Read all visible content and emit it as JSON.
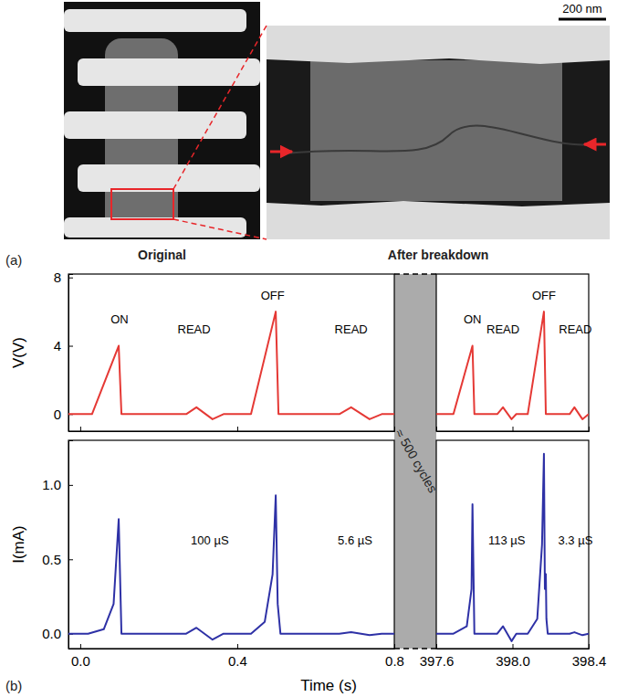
{
  "panel_labels": [
    "(a)",
    "(b)"
  ],
  "panel_a": {
    "left_caption": "Original",
    "right_caption": "After breakdown",
    "scale_bar": "200 nm"
  },
  "break_label": "≈ 500 cycles",
  "chart_data": [
    {
      "type": "line",
      "ylabel": "V(V)",
      "ylim": [
        -1,
        8.2
      ],
      "yticks": [
        0,
        4,
        8
      ],
      "xlim": [
        [
          -0.03,
          0.8
        ],
        [
          397.6,
          398.4
        ]
      ],
      "xticks": [
        [
          {
            "value": 0,
            "label": "0.0"
          },
          0.4,
          0.8
        ],
        [
          397.6,
          {
            "value": 398,
            "label": "398.0"
          },
          398.4
        ]
      ],
      "tick_labels": "y",
      "series": [
        {
          "color": "#e53935",
          "x": [
            -0.03,
            0.03,
            0.098,
            0.105,
            0.27,
            0.296,
            0.337,
            0.365,
            0.435,
            0.498,
            0.505,
            0.66,
            0.69,
            0.737,
            0.768,
            0.8
          ],
          "values": [
            0,
            0,
            4,
            0,
            0,
            0.4,
            -0.3,
            0,
            0,
            6,
            0,
            0,
            0.4,
            -0.3,
            0,
            0
          ]
        },
        {
          "color": "#e53935",
          "x": [
            397.6,
            397.69,
            397.79,
            397.8,
            397.92,
            397.95,
            397.995,
            398.02,
            398.08,
            398.165,
            398.175,
            398.3,
            398.325,
            398.367,
            398.4
          ],
          "values": [
            0,
            0,
            4,
            0,
            0,
            0.4,
            -0.3,
            0,
            0,
            6,
            0,
            0,
            0.4,
            -0.3,
            0
          ]
        }
      ],
      "annotations": [
        {
          "text": "ON",
          "x": 0.1,
          "y": 5.5
        },
        {
          "text": "READ",
          "x": 0.29,
          "y": 4.9
        },
        {
          "text": "OFF",
          "x": 0.49,
          "y": 6.9
        },
        {
          "text": "READ",
          "x": 0.69,
          "y": 4.9
        },
        {
          "text": "ON",
          "x": 397.79,
          "y": 5.5
        },
        {
          "text": "READ",
          "x": 397.95,
          "y": 4.9
        },
        {
          "text": "OFF",
          "x": 398.165,
          "y": 6.9
        },
        {
          "text": "READ",
          "x": 398.33,
          "y": 4.9
        }
      ]
    },
    {
      "type": "line",
      "ylabel": "I(mA)",
      "xlabel": "Time (s)",
      "ylim": [
        -0.1,
        1.3
      ],
      "yticks": [
        {
          "value": 0,
          "label": "0.0"
        },
        0.5,
        {
          "value": 1,
          "label": "1.0"
        }
      ],
      "xlim": [
        [
          -0.03,
          0.8
        ],
        [
          397.6,
          398.4
        ]
      ],
      "xticks": [
        [
          {
            "value": 0,
            "label": "0.0"
          },
          0.4,
          0.8
        ],
        [
          397.6,
          {
            "value": 398,
            "label": "398.0"
          },
          398.4
        ]
      ],
      "series": [
        {
          "color": "#2e31a6",
          "x": [
            -0.03,
            0.02,
            0.06,
            0.085,
            0.098,
            0.105,
            0.27,
            0.296,
            0.337,
            0.365,
            0.435,
            0.47,
            0.49,
            0.498,
            0.503,
            0.51,
            0.66,
            0.69,
            0.737,
            0.768,
            0.8
          ],
          "values": [
            0,
            0,
            0.03,
            0.2,
            0.77,
            0,
            0,
            0.04,
            -0.04,
            0,
            0,
            0.08,
            0.4,
            0.93,
            0.2,
            0,
            0,
            0.01,
            -0.01,
            0,
            0
          ]
        },
        {
          "color": "#2e31a6",
          "x": [
            397.6,
            397.69,
            397.76,
            397.785,
            397.79,
            397.8,
            397.92,
            397.95,
            397.995,
            398.02,
            398.08,
            398.13,
            398.155,
            398.165,
            398.17,
            398.175,
            398.178,
            398.185,
            398.3,
            398.325,
            398.367,
            398.4
          ],
          "values": [
            0,
            0,
            0.05,
            0.3,
            0.87,
            0,
            0,
            0.05,
            -0.05,
            0,
            0,
            0.1,
            0.6,
            1.21,
            0.3,
            0.4,
            0.1,
            0,
            0,
            0.01,
            -0.01,
            0
          ]
        }
      ],
      "annotations": [
        {
          "text": "100 µS",
          "x": 0.33,
          "y": 0.62
        },
        {
          "text": "5.6 µS",
          "x": 0.7,
          "y": 0.62
        },
        {
          "text": "113 µS",
          "x": 397.97,
          "y": 0.62
        },
        {
          "text": "3.3 µS",
          "x": 398.33,
          "y": 0.62
        }
      ]
    }
  ]
}
